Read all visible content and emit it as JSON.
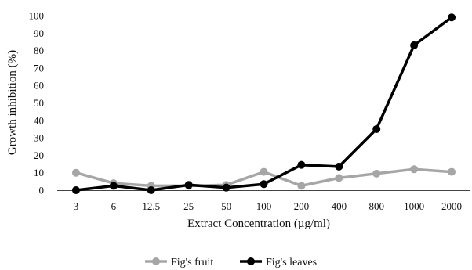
{
  "chart_data": {
    "type": "line",
    "xlabel": "Extract Concentration (µg/ml)",
    "ylabel": "Growth inhibition (%)",
    "categories": [
      "3",
      "6",
      "12.5",
      "25",
      "50",
      "100",
      "200",
      "400",
      "800",
      "1000",
      "2000"
    ],
    "ylim": [
      0,
      100
    ],
    "yticks": [
      0,
      10,
      20,
      30,
      40,
      50,
      60,
      70,
      80,
      90,
      100
    ],
    "grid": false,
    "legend_position": "bottom",
    "series": [
      {
        "name": "Fig's fruit",
        "color": "#a6a6a6",
        "values": [
          10,
          4,
          2.5,
          2.5,
          3,
          10.5,
          2.5,
          7,
          9.5,
          12,
          10.5
        ]
      },
      {
        "name": "Fig's leaves",
        "color": "#000000",
        "values": [
          0,
          2.5,
          0,
          3,
          1.5,
          3.5,
          14.5,
          13.5,
          35,
          83,
          99
        ]
      }
    ]
  }
}
